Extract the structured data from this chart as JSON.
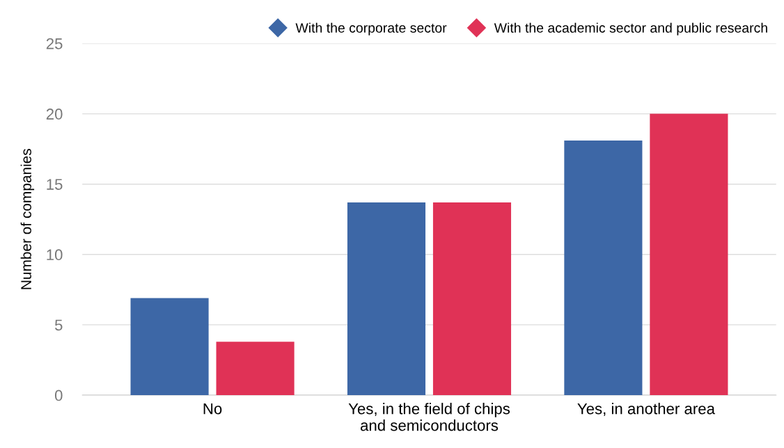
{
  "chart_data": {
    "type": "bar",
    "ylabel": "Number of companies",
    "categories": [
      "No",
      "Yes, in the field of chips\nand semiconductors",
      "Yes, in another area"
    ],
    "series": [
      {
        "name": "With the corporate sector",
        "color": "#3d67a6",
        "values": [
          6.9,
          13.7,
          18.1
        ]
      },
      {
        "name": "With the academic sector and public research",
        "color": "#e03256",
        "values": [
          3.8,
          13.7,
          20
        ]
      }
    ],
    "ylim": [
      0,
      25
    ],
    "yticks": [
      0,
      5,
      10,
      15,
      20,
      25
    ],
    "grid": "y",
    "legend": "top right",
    "marker": "diamond"
  }
}
